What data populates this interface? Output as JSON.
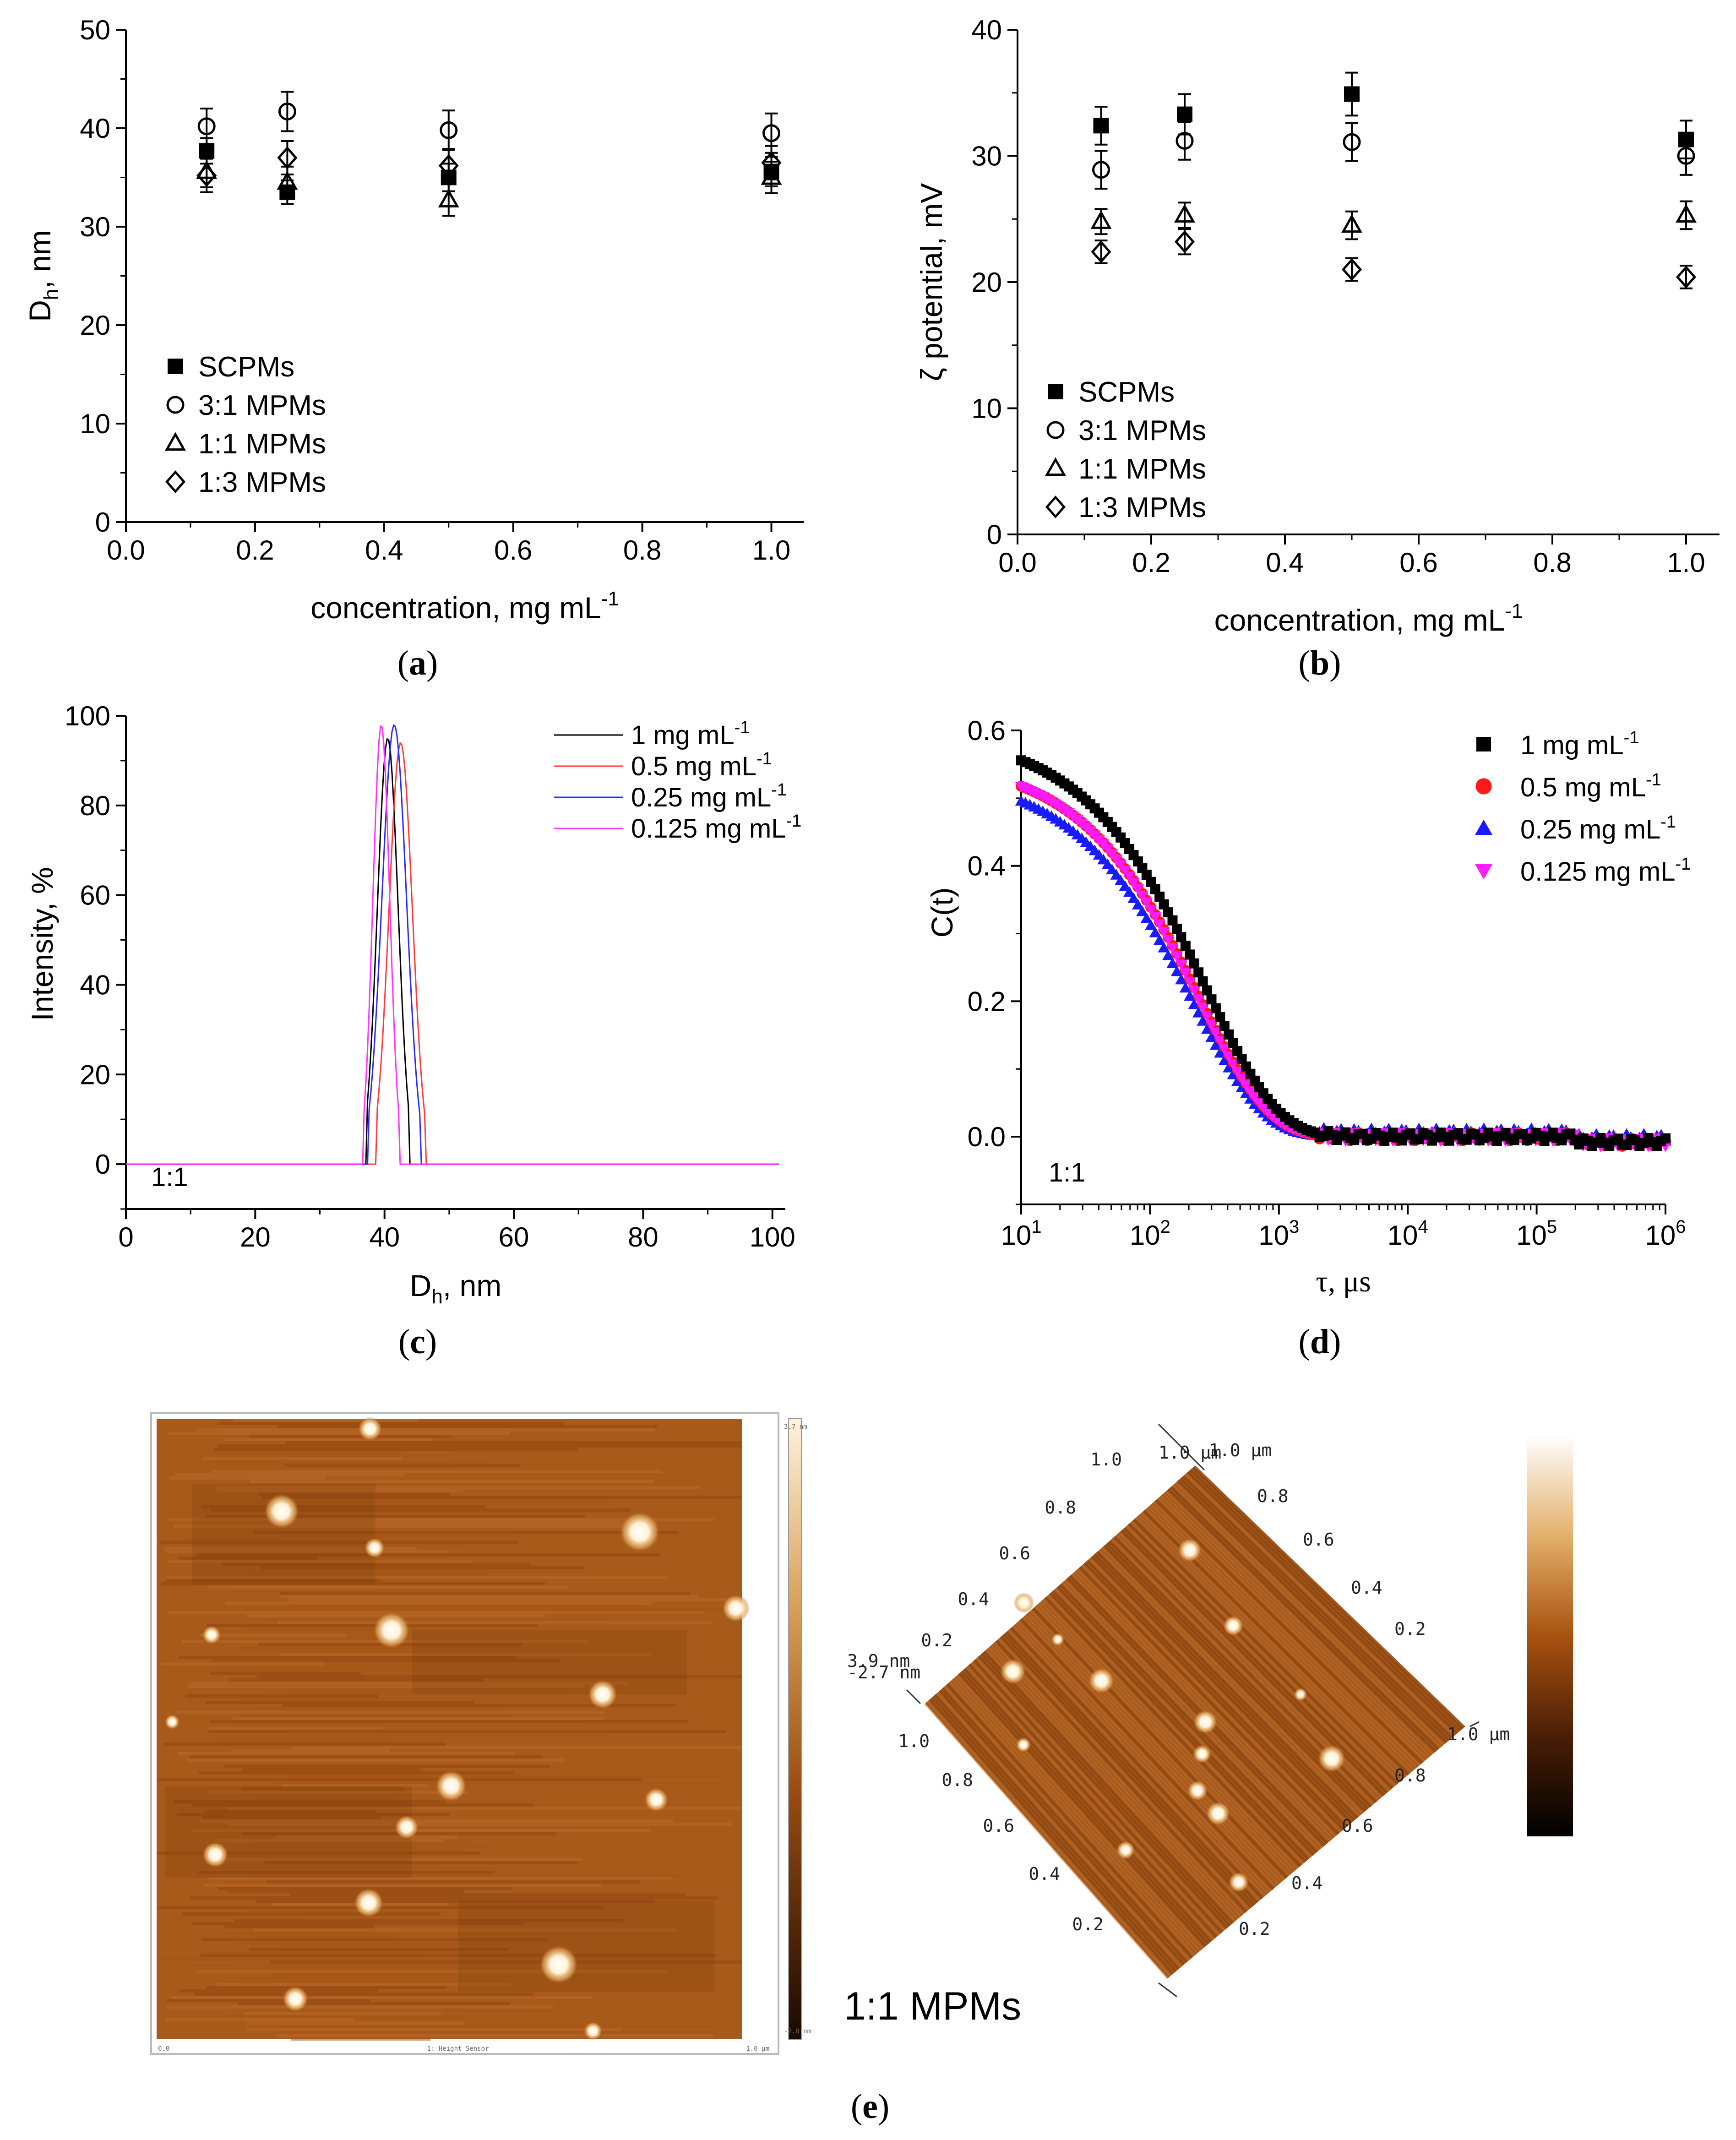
{
  "chart_data": [
    {
      "id": "a",
      "type": "scatter",
      "caption": "a",
      "xlabel": "concentration, mg mL",
      "xlabel_sup": "-1",
      "ylabel": "D",
      "ylabel_sub": "h",
      "ylabel_suffix": ", nm",
      "xlim": [
        0.0,
        1.05
      ],
      "ylim": [
        0,
        50
      ],
      "xticks": [
        0.0,
        0.2,
        0.4,
        0.6,
        0.8,
        1.0
      ],
      "xtick_labels": [
        "0.0",
        "0.2",
        "0.4",
        "0.6",
        "0.8",
        "1.0"
      ],
      "yticks": [
        0,
        10,
        20,
        30,
        40,
        50
      ],
      "ytick_labels": [
        "0",
        "10",
        "20",
        "30",
        "40",
        "50"
      ],
      "legend_position": "lower-left",
      "series": [
        {
          "name": "SCPMs",
          "marker": "square-filled",
          "x": [
            0.125,
            0.25,
            0.5,
            1.0
          ],
          "y": [
            37.7,
            33.5,
            35.0,
            35.6
          ],
          "err": [
            1.3,
            1.2,
            1.4,
            1.5
          ]
        },
        {
          "name": "3:1 MPMs",
          "marker": "circle-open",
          "x": [
            0.125,
            0.25,
            0.5,
            1.0
          ],
          "y": [
            40.2,
            41.7,
            39.8,
            39.5
          ],
          "err": [
            1.8,
            2.0,
            2.0,
            2.0
          ]
        },
        {
          "name": "1:1 MPMs",
          "marker": "triangle-open",
          "x": [
            0.125,
            0.25,
            0.5,
            1.0
          ],
          "y": [
            35.6,
            34.5,
            32.7,
            35.0
          ],
          "err": [
            1.6,
            1.6,
            1.6,
            1.6
          ]
        },
        {
          "name": "1:3 MPMs",
          "marker": "diamond-open",
          "x": [
            0.125,
            0.25,
            0.5,
            1.0
          ],
          "y": [
            35.2,
            37.0,
            36.2,
            36.5
          ],
          "err": [
            1.7,
            1.7,
            1.7,
            1.7
          ]
        }
      ]
    },
    {
      "id": "b",
      "type": "scatter",
      "caption": "b",
      "xlabel": "concentration, mg mL",
      "xlabel_sup": "-1",
      "ylabel": "ζ potential, mV",
      "xlim": [
        0.0,
        1.05
      ],
      "ylim": [
        0,
        40
      ],
      "xticks": [
        0.0,
        0.2,
        0.4,
        0.6,
        0.8,
        1.0
      ],
      "xtick_labels": [
        "0.0",
        "0.2",
        "0.4",
        "0.6",
        "0.8",
        "1.0"
      ],
      "yticks": [
        0,
        10,
        20,
        30,
        40
      ],
      "ytick_labels": [
        "0",
        "10",
        "20",
        "30",
        "40"
      ],
      "legend_position": "lower-left",
      "series": [
        {
          "name": "SCPMs",
          "marker": "square-filled",
          "x": [
            0.125,
            0.25,
            0.5,
            1.0
          ],
          "y": [
            32.4,
            33.3,
            34.9,
            31.3
          ],
          "err": [
            1.5,
            1.6,
            1.7,
            1.5
          ]
        },
        {
          "name": "3:1 MPMs",
          "marker": "circle-open",
          "x": [
            0.125,
            0.25,
            0.5,
            1.0
          ],
          "y": [
            28.9,
            31.2,
            31.1,
            30.0
          ],
          "err": [
            1.5,
            1.5,
            1.5,
            1.5
          ]
        },
        {
          "name": "1:1 MPMs",
          "marker": "triangle-open",
          "x": [
            0.125,
            0.25,
            0.5,
            1.0
          ],
          "y": [
            24.8,
            25.3,
            24.5,
            25.3
          ],
          "err": [
            1.0,
            1.0,
            1.1,
            1.1
          ]
        },
        {
          "name": "1:3 MPMs",
          "marker": "diamond-open",
          "x": [
            0.125,
            0.25,
            0.5,
            1.0
          ],
          "y": [
            22.4,
            23.2,
            21.0,
            20.4
          ],
          "err": [
            0.9,
            1.0,
            0.9,
            0.9
          ]
        }
      ]
    },
    {
      "id": "c",
      "type": "line",
      "caption": "c",
      "xlabel": "D",
      "xlabel_sub": "h",
      "xlabel_suffix": ", nm",
      "ylabel": "Intensity, %",
      "annotation": "1:1",
      "xlim": [
        0,
        102
      ],
      "ylim": [
        -10,
        100
      ],
      "xticks": [
        0,
        20,
        40,
        60,
        80,
        100
      ],
      "xtick_labels": [
        "0",
        "20",
        "40",
        "60",
        "80",
        "100"
      ],
      "yticks": [
        0,
        20,
        40,
        60,
        80,
        100
      ],
      "ytick_labels": [
        "0",
        "20",
        "40",
        "60",
        "80",
        "100"
      ],
      "legend_position": "top-right",
      "series": [
        {
          "name": "1 mg mL",
          "sup": "-1",
          "color": "#000000",
          "peak": 40.5,
          "height": 95,
          "sigma": 1.6
        },
        {
          "name": "0.5 mg mL",
          "sup": "-1",
          "color": "#ff3b3b",
          "peak": 42.5,
          "height": 94,
          "sigma": 1.8
        },
        {
          "name": "0.25 mg mL",
          "sup": "-1",
          "color": "#2a2aff",
          "peak": 41.5,
          "height": 98,
          "sigma": 1.9
        },
        {
          "name": "0.125 mg mL",
          "sup": "-1",
          "color": "#ff33ff",
          "peak": 39.5,
          "height": 98,
          "sigma": 1.3
        }
      ]
    },
    {
      "id": "d",
      "type": "scatter",
      "caption": "d",
      "xlabel": "τ, μs",
      "ylabel": "C(t)",
      "annotation": "1:1",
      "xscale": "log",
      "xlim": [
        10,
        1000000
      ],
      "ylim": [
        -0.1,
        0.6
      ],
      "xticks": [
        10,
        100,
        1000,
        10000,
        100000,
        1000000
      ],
      "xtick_base": "10",
      "xtick_exps": [
        "1",
        "2",
        "3",
        "4",
        "5",
        "6"
      ],
      "yticks": [
        0.0,
        0.2,
        0.4,
        0.6
      ],
      "ytick_labels": [
        "0.0",
        "0.2",
        "0.4",
        "0.6"
      ],
      "legend_position": "top-right",
      "series": [
        {
          "name": "1 mg mL",
          "sup": "-1",
          "marker": "square",
          "color": "#000000",
          "c0": 0.6,
          "tau": 270,
          "beta": 0.78
        },
        {
          "name": "0.5 mg mL",
          "sup": "-1",
          "marker": "circle",
          "color": "#ff1a1a",
          "c0": 0.56,
          "tau": 240,
          "beta": 0.8
        },
        {
          "name": "0.25 mg mL",
          "sup": "-1",
          "marker": "triangle",
          "color": "#1a1aff",
          "c0": 0.54,
          "tau": 215,
          "beta": 0.8
        },
        {
          "name": "0.125 mg mL",
          "sup": "-1",
          "marker": "triangle-down",
          "color": "#ff1aff",
          "c0": 0.56,
          "tau": 235,
          "beta": 0.8
        }
      ]
    }
  ],
  "afm": {
    "caption": "e",
    "sample_label": "1:1 MPMs",
    "flat_bottom_label": "1: Height Sensor",
    "flat_scale_left": "0.0",
    "flat_scale_right": "1.0 µm",
    "colorbar_top": "3.7 nm",
    "colorbar_bottom": "-2.8 nm",
    "height_top": "3.9 nm",
    "height_bottom": "-2.7 nm",
    "axis_labels_a": [
      "0.2",
      "0.4",
      "0.6",
      "0.8",
      "1.0"
    ],
    "axis_labels_b": [
      "0.2",
      "0.4",
      "0.6",
      "0.8",
      "1.0"
    ],
    "axis_labels_c": [
      "0.2",
      "0.4",
      "0.6",
      "0.8"
    ],
    "axis_labels_d": [
      "0.2",
      "0.4",
      "0.6",
      "0.8"
    ],
    "unit_top_a": "1.0 µm",
    "unit_top_b": "1.0 µm",
    "unit_right": "1.0 µm",
    "colors": {
      "dark": "#6b2f00",
      "mid": "#b5651d",
      "light": "#fff6e6"
    }
  }
}
